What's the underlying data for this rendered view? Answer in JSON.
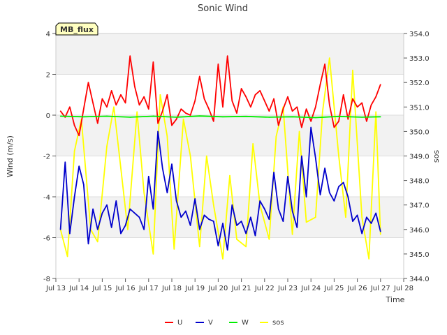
{
  "chart_data": {
    "type": "line",
    "title": "Sonic Wind",
    "site_badge": "MB_flux",
    "xlabel": "Time",
    "ylabel": "Wind (m/s)",
    "y2label": "sos",
    "ylim": [
      -8,
      4
    ],
    "y2lim": [
      344.0,
      354.0
    ],
    "xlim": [
      13,
      28
    ],
    "x_ticks": [
      {
        "value": 13,
        "label": "Jul 13"
      },
      {
        "value": 14,
        "label": "Jul 14"
      },
      {
        "value": 15,
        "label": "Jul 15"
      },
      {
        "value": 16,
        "label": "Jul 16"
      },
      {
        "value": 17,
        "label": "Jul 17"
      },
      {
        "value": 18,
        "label": "Jul 18"
      },
      {
        "value": 19,
        "label": "Jul 19"
      },
      {
        "value": 20,
        "label": "Jul 20"
      },
      {
        "value": 21,
        "label": "Jul 21"
      },
      {
        "value": 22,
        "label": "Jul 22"
      },
      {
        "value": 23,
        "label": "Jul 23"
      },
      {
        "value": 24,
        "label": "Jul 24"
      },
      {
        "value": 25,
        "label": "Jul 25"
      },
      {
        "value": 26,
        "label": "Jul 26"
      },
      {
        "value": 27,
        "label": "Jul 27"
      },
      {
        "value": 28,
        "label": "Jul 28"
      }
    ],
    "y_ticks": [
      {
        "value": -8,
        "label": "-8"
      },
      {
        "value": -6,
        "label": "-6"
      },
      {
        "value": -4,
        "label": "-4"
      },
      {
        "value": -2,
        "label": "-2"
      },
      {
        "value": 0,
        "label": "0"
      },
      {
        "value": 2,
        "label": "2"
      },
      {
        "value": 4,
        "label": "4"
      }
    ],
    "y2_ticks": [
      {
        "value": 344,
        "label": "344.0"
      },
      {
        "value": 345,
        "label": "345.0"
      },
      {
        "value": 346,
        "label": "346.0"
      },
      {
        "value": 347,
        "label": "347.0"
      },
      {
        "value": 348,
        "label": "348.0"
      },
      {
        "value": 349,
        "label": "349.0"
      },
      {
        "value": 350,
        "label": "350.0"
      },
      {
        "value": 351,
        "label": "351.0"
      },
      {
        "value": 352,
        "label": "352.0"
      },
      {
        "value": 353,
        "label": "353.0"
      },
      {
        "value": 354,
        "label": "354.0"
      }
    ],
    "legend_position": "bottom-center",
    "series": [
      {
        "name": "U",
        "color": "#ff0000",
        "axis": "left",
        "x": [
          13.2,
          13.4,
          13.6,
          13.8,
          14.0,
          14.2,
          14.4,
          14.6,
          14.8,
          15.0,
          15.2,
          15.4,
          15.6,
          15.8,
          16.0,
          16.2,
          16.4,
          16.6,
          16.8,
          17.0,
          17.2,
          17.4,
          17.6,
          17.8,
          18.0,
          18.2,
          18.4,
          18.6,
          18.8,
          19.0,
          19.2,
          19.4,
          19.6,
          19.8,
          20.0,
          20.2,
          20.4,
          20.6,
          20.8,
          21.0,
          21.2,
          21.4,
          21.6,
          21.8,
          22.0,
          22.2,
          22.4,
          22.6,
          22.8,
          23.0,
          23.2,
          23.4,
          23.6,
          23.8,
          24.0,
          24.2,
          24.4,
          24.6,
          24.8,
          25.0,
          25.2,
          25.4,
          25.6,
          25.8,
          26.0,
          26.2,
          26.4,
          26.6,
          26.8,
          27.0
        ],
        "values": [
          0.2,
          -0.1,
          0.4,
          -0.5,
          -1.0,
          0.3,
          1.6,
          0.6,
          -0.4,
          0.8,
          0.4,
          1.2,
          0.5,
          1.0,
          0.6,
          2.9,
          1.4,
          0.5,
          0.9,
          0.3,
          2.6,
          -0.4,
          0.2,
          1.0,
          -0.5,
          -0.2,
          0.3,
          0.1,
          0.0,
          0.7,
          1.9,
          0.8,
          0.3,
          -0.3,
          2.5,
          0.4,
          2.9,
          0.7,
          0.1,
          1.3,
          0.9,
          0.4,
          1.0,
          1.2,
          0.7,
          0.2,
          0.8,
          -0.5,
          0.3,
          0.9,
          0.2,
          0.4,
          -0.6,
          0.3,
          -0.3,
          0.4,
          1.5,
          2.5,
          0.5,
          -0.6,
          -0.3,
          1.0,
          -0.2,
          0.8,
          0.4,
          0.6,
          -0.3,
          0.5,
          0.9,
          1.5
        ]
      },
      {
        "name": "V",
        "color": "#0000cc",
        "axis": "left",
        "x": [
          13.2,
          13.4,
          13.6,
          13.8,
          14.0,
          14.2,
          14.4,
          14.6,
          14.8,
          15.0,
          15.2,
          15.4,
          15.6,
          15.8,
          16.0,
          16.2,
          16.4,
          16.6,
          16.8,
          17.0,
          17.2,
          17.4,
          17.6,
          17.8,
          18.0,
          18.2,
          18.4,
          18.6,
          18.8,
          19.0,
          19.2,
          19.4,
          19.6,
          19.8,
          20.0,
          20.2,
          20.4,
          20.6,
          20.8,
          21.0,
          21.2,
          21.4,
          21.6,
          21.8,
          22.0,
          22.2,
          22.4,
          22.6,
          22.8,
          23.0,
          23.2,
          23.4,
          23.6,
          23.8,
          24.0,
          24.2,
          24.4,
          24.6,
          24.8,
          25.0,
          25.2,
          25.4,
          25.6,
          25.8,
          26.0,
          26.2,
          26.4,
          26.6,
          26.8,
          27.0
        ],
        "values": [
          -5.6,
          -2.3,
          -5.8,
          -4.0,
          -2.5,
          -3.4,
          -6.3,
          -4.6,
          -5.6,
          -4.8,
          -4.4,
          -5.5,
          -4.2,
          -5.8,
          -5.4,
          -4.6,
          -4.8,
          -5.0,
          -5.6,
          -3.0,
          -4.6,
          -0.8,
          -2.6,
          -3.8,
          -2.4,
          -4.2,
          -5.0,
          -4.7,
          -5.4,
          -4.1,
          -5.6,
          -4.9,
          -5.1,
          -5.2,
          -6.4,
          -5.3,
          -6.6,
          -4.4,
          -5.4,
          -5.2,
          -5.8,
          -5.0,
          -5.9,
          -4.2,
          -4.6,
          -5.1,
          -2.8,
          -4.6,
          -5.2,
          -3.0,
          -4.7,
          -5.5,
          -2.0,
          -4.0,
          -0.6,
          -2.1,
          -3.9,
          -2.6,
          -3.8,
          -4.2,
          -3.5,
          -3.3,
          -4.0,
          -5.2,
          -4.9,
          -5.8,
          -5.0,
          -5.3,
          -4.8,
          -5.7
        ]
      },
      {
        "name": "W",
        "color": "#00ee00",
        "axis": "left",
        "x": [
          13.2,
          14.2,
          15.2,
          16.2,
          17.2,
          18.2,
          19.2,
          20.2,
          21.2,
          22.2,
          23.2,
          24.2,
          25.2,
          26.2,
          27.0
        ],
        "values": [
          -0.05,
          -0.08,
          -0.05,
          -0.1,
          -0.05,
          -0.1,
          -0.04,
          -0.08,
          -0.06,
          -0.1,
          -0.08,
          -0.12,
          -0.06,
          -0.1,
          -0.08
        ]
      },
      {
        "name": "sos",
        "color": "#ffff00",
        "axis": "right",
        "x": [
          13.2,
          13.5,
          13.8,
          14.1,
          14.5,
          14.8,
          15.2,
          15.5,
          15.8,
          16.1,
          16.5,
          16.8,
          17.2,
          17.5,
          17.8,
          18.1,
          18.5,
          18.8,
          19.2,
          19.5,
          19.8,
          20.2,
          20.5,
          20.8,
          21.2,
          21.5,
          21.8,
          22.2,
          22.5,
          22.8,
          23.2,
          23.5,
          23.8,
          24.2,
          24.5,
          24.8,
          25.2,
          25.5,
          25.8,
          26.2,
          26.5,
          26.8,
          27.0
        ],
        "values": [
          346.0,
          344.9,
          349.2,
          350.5,
          346.0,
          345.5,
          349.4,
          351.0,
          348.5,
          346.0,
          350.8,
          347.5,
          345.0,
          351.5,
          349.8,
          345.2,
          350.5,
          349.0,
          345.3,
          349.0,
          347.0,
          344.8,
          348.2,
          345.6,
          345.3,
          349.5,
          347.0,
          345.6,
          349.8,
          351.0,
          345.8,
          350.0,
          346.3,
          346.5,
          350.8,
          353.0,
          349.0,
          346.5,
          352.5,
          346.5,
          344.8,
          350.8,
          345.8
        ]
      }
    ]
  }
}
